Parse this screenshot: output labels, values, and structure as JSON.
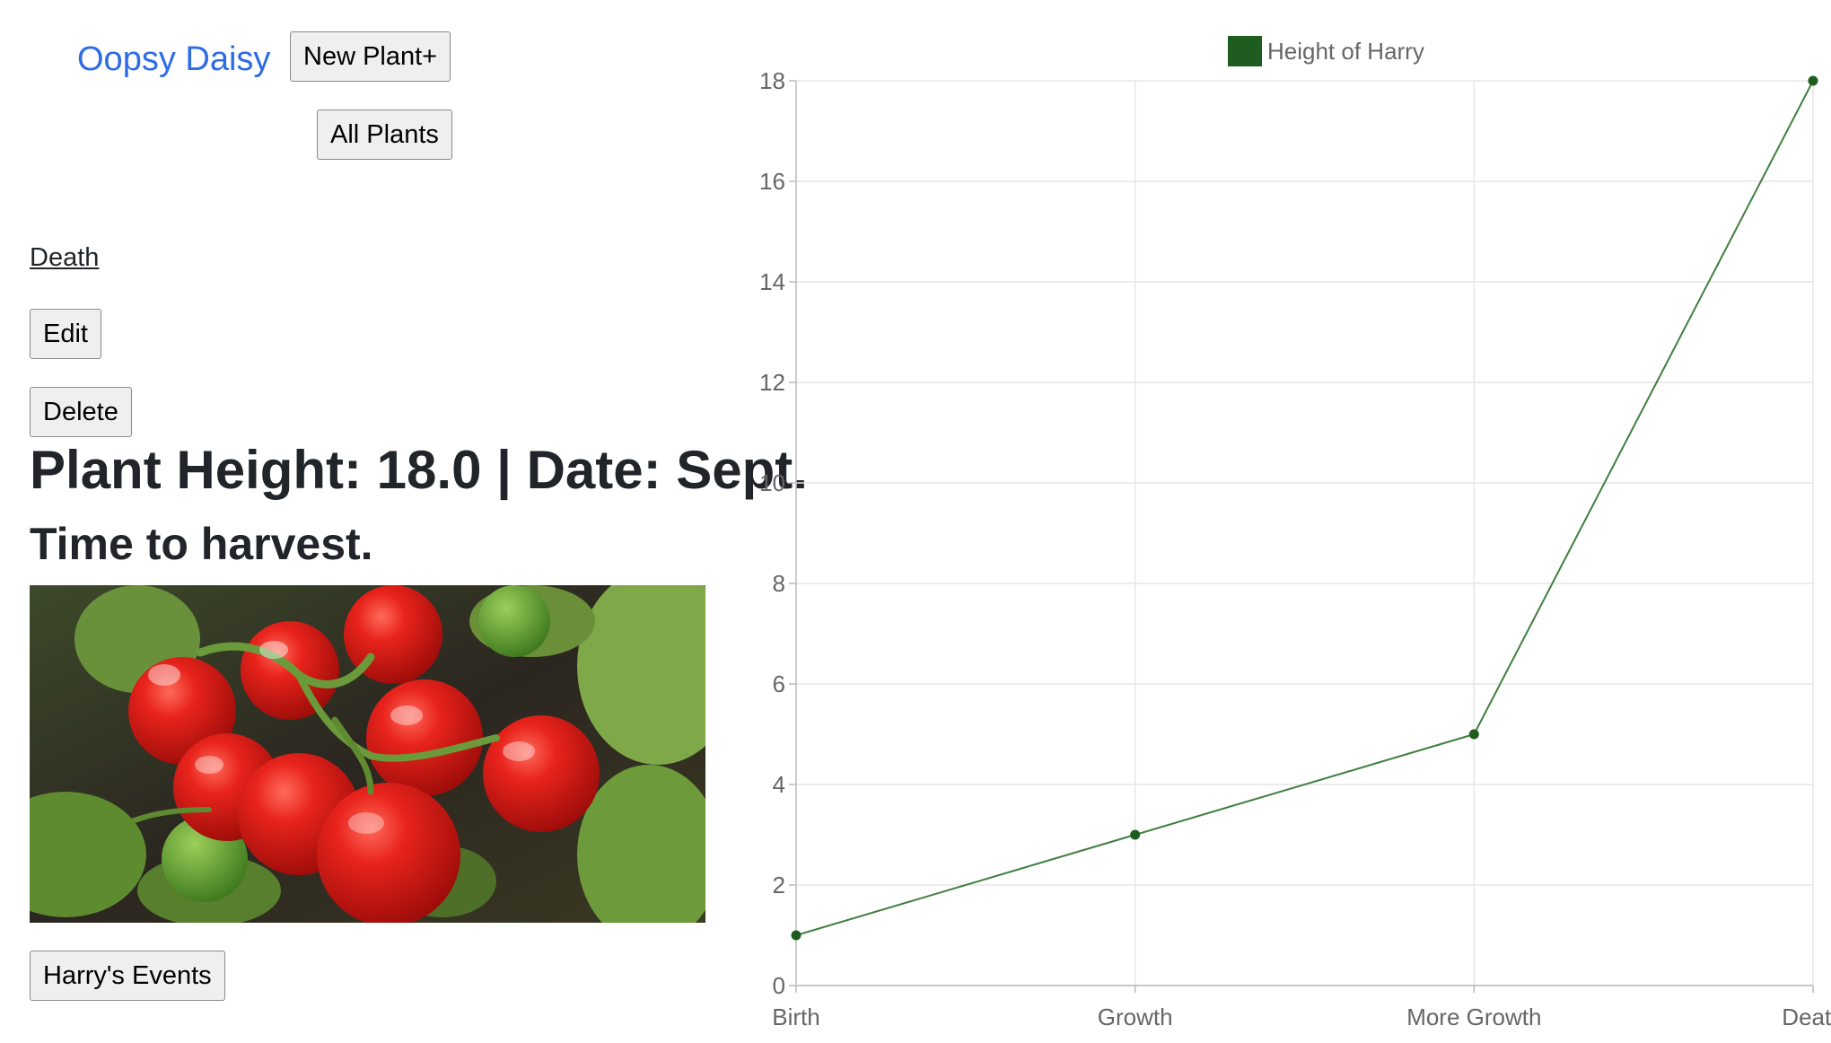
{
  "nav": {
    "brand": "Oopsy Daisy",
    "new_plant_label": "New Plant+",
    "all_plants_label": "All Plants"
  },
  "event": {
    "title": "Death",
    "edit_label": "Edit",
    "delete_label": "Delete",
    "heading": "Plant Height: 18.0 | Date: Sept.",
    "note": "Time to harvest.",
    "photo_icon": "tomato-plant-photo",
    "events_button_label": "Harry's Events"
  },
  "colors": {
    "brand": "#2e6be6",
    "series": "#1f5c1f",
    "series_line": "#3f7f3f"
  },
  "chart_data": {
    "type": "line",
    "categories": [
      "Birth",
      "Growth",
      "More Growth",
      "Death"
    ],
    "series": [
      {
        "name": "Height of Harry",
        "values": [
          1,
          3,
          5,
          18
        ]
      }
    ],
    "ylim": [
      0,
      18
    ],
    "yticks": [
      0,
      2,
      4,
      6,
      8,
      10,
      12,
      14,
      16,
      18
    ],
    "grid": true,
    "legend": "top-center"
  }
}
